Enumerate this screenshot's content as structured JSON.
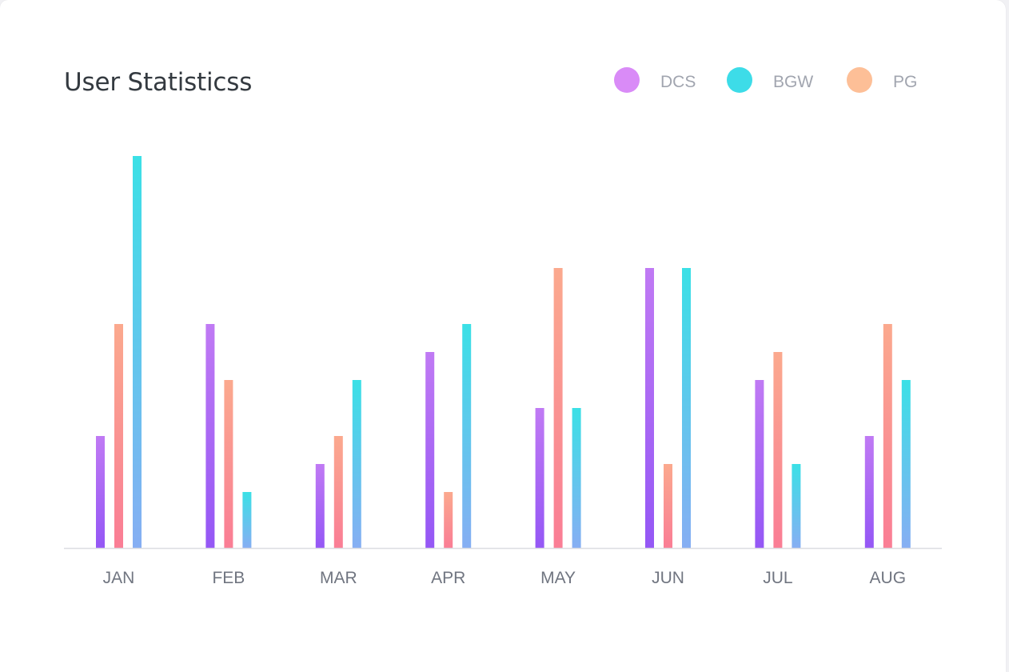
{
  "colors": {
    "dcs_legend": "#d98bf7",
    "bgw_legend": "#3ddce8",
    "pg_legend": "#fdbf97",
    "dcs_bar_top": "#c07af4",
    "dcs_bar_bottom": "#9457f5",
    "pg_bar_top": "#fba98e",
    "pg_bar_bottom": "#fa7d95",
    "bgw_bar_top": "#3be0e6",
    "bgw_bar_bottom": "#86aef3",
    "axis": "#dcdde2"
  },
  "chart_data": {
    "type": "bar",
    "title": "User Statisticss",
    "categories": [
      "JAN",
      "FEB",
      "MAR",
      "APR",
      "MAY",
      "JUN",
      "JUL",
      "AUG"
    ],
    "series": [
      {
        "name": "DCS",
        "values": [
          4,
          8,
          3,
          7,
          5,
          10,
          6,
          4
        ]
      },
      {
        "name": "PG",
        "values": [
          8,
          6,
          4,
          2,
          10,
          3,
          7,
          8
        ]
      },
      {
        "name": "BGW",
        "values": [
          14,
          2,
          6,
          8,
          5,
          10,
          3,
          6
        ]
      }
    ],
    "ylim": [
      0,
      14
    ],
    "legend_position": "top-right",
    "grid": false
  },
  "legend": [
    {
      "label": "DCS",
      "color": "#d98bf7"
    },
    {
      "label": "BGW",
      "color": "#3ddce8"
    },
    {
      "label": "PG",
      "color": "#fdbf97"
    }
  ]
}
